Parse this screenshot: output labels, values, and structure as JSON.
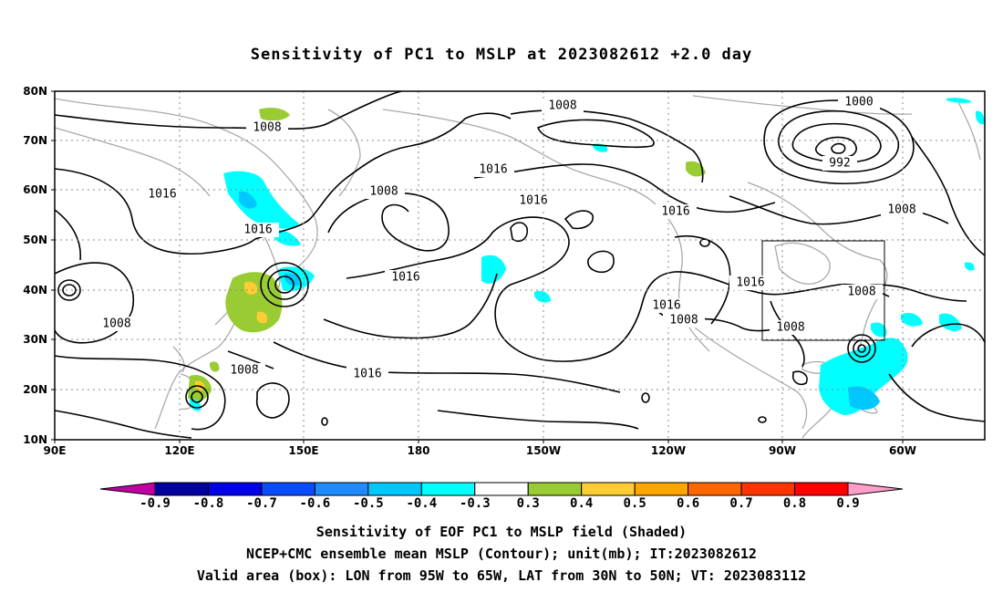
{
  "title": "Sensitivity of PC1 to MSLP at 2023082612 +2.0 day",
  "lat_labels": [
    "80N",
    "70N",
    "60N",
    "50N",
    "40N",
    "30N",
    "20N",
    "10N"
  ],
  "lon_labels": [
    "90E",
    "120E",
    "150E",
    "180",
    "150W",
    "120W",
    "90W",
    "60W"
  ],
  "contour_labels": [
    "1008",
    "1008",
    "1016",
    "1008",
    "1016",
    "1016",
    "1008",
    "1016",
    "1016",
    "1008",
    "1016",
    "1016",
    "1016",
    "1016",
    "1008",
    "1008",
    "1008",
    "1000",
    "992",
    "1008"
  ],
  "colorbar": {
    "labels": [
      "-0.9",
      "-0.8",
      "-0.7",
      "-0.6",
      "-0.5",
      "-0.4",
      "-0.3",
      "0.3",
      "0.4",
      "0.5",
      "0.6",
      "0.7",
      "0.8",
      "0.9"
    ],
    "colors": [
      "#0000a0",
      "#0000e6",
      "#0a4bff",
      "#1e8cff",
      "#00c8ff",
      "#00ffff",
      "#ffffff",
      "#99cc33",
      "#ffcc33",
      "#ffa500",
      "#ff6600",
      "#ff3300",
      "#ff0000"
    ],
    "low_end_color": "#c000a0",
    "high_end_color": "#ff9ec8"
  },
  "caption": {
    "line1": "Sensitivity of EOF PC1 to MSLP field (Shaded)",
    "line2": "NCEP+CMC ensemble mean MSLP (Contour); unit(mb); IT:2023082612",
    "line3": "Valid area (box): LON from 95W to 65W, LAT from 30N to 50N; VT: 2023083112"
  }
}
